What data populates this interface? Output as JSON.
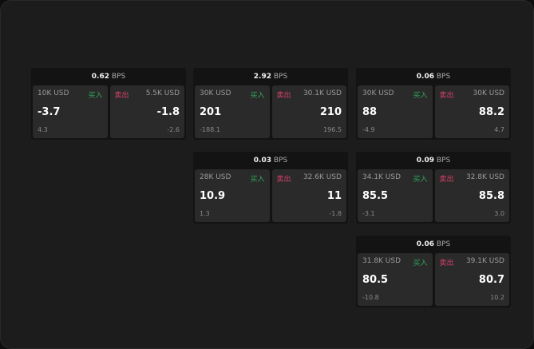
{
  "cards": [
    {
      "bps": "0.62",
      "unit": "BPS",
      "buy": {
        "size": "10K USD",
        "label": "买入",
        "price": "-3.7",
        "change": "4.3"
      },
      "sell": {
        "size": "5.5K USD",
        "label": "卖出",
        "price": "-1.8",
        "change": "-2.6"
      }
    },
    {
      "bps": "2.92",
      "unit": "BPS",
      "buy": {
        "size": "30K USD",
        "label": "买入",
        "price": "201",
        "change": "-188.1"
      },
      "sell": {
        "size": "30.1K USD",
        "label": "卖出",
        "price": "210",
        "change": "196.5"
      }
    },
    {
      "bps": "0.06",
      "unit": "BPS",
      "buy": {
        "size": "30K USD",
        "label": "买入",
        "price": "88",
        "change": "-4.9"
      },
      "sell": {
        "size": "30K USD",
        "label": "卖出",
        "price": "88.2",
        "change": "4.7"
      }
    },
    {
      "bps": "0.03",
      "unit": "BPS",
      "buy": {
        "size": "28K USD",
        "label": "买入",
        "price": "10.9",
        "change": "1.3"
      },
      "sell": {
        "size": "32.6K USD",
        "label": "卖出",
        "price": "11",
        "change": "-1.8"
      }
    },
    {
      "bps": "0.09",
      "unit": "BPS",
      "buy": {
        "size": "34.1K USD",
        "label": "买入",
        "price": "85.5",
        "change": "-3.1"
      },
      "sell": {
        "size": "32.8K USD",
        "label": "卖出",
        "price": "85.8",
        "change": "3.0"
      }
    },
    {
      "bps": "0.06",
      "unit": "BPS",
      "buy": {
        "size": "31.8K USD",
        "label": "买入",
        "price": "80.5",
        "change": "-10.8"
      },
      "sell": {
        "size": "39.1K USD",
        "label": "卖出",
        "price": "80.7",
        "change": "10.2"
      }
    }
  ],
  "colors": {
    "buy": "#2fa55a",
    "sell": "#d8406a"
  }
}
